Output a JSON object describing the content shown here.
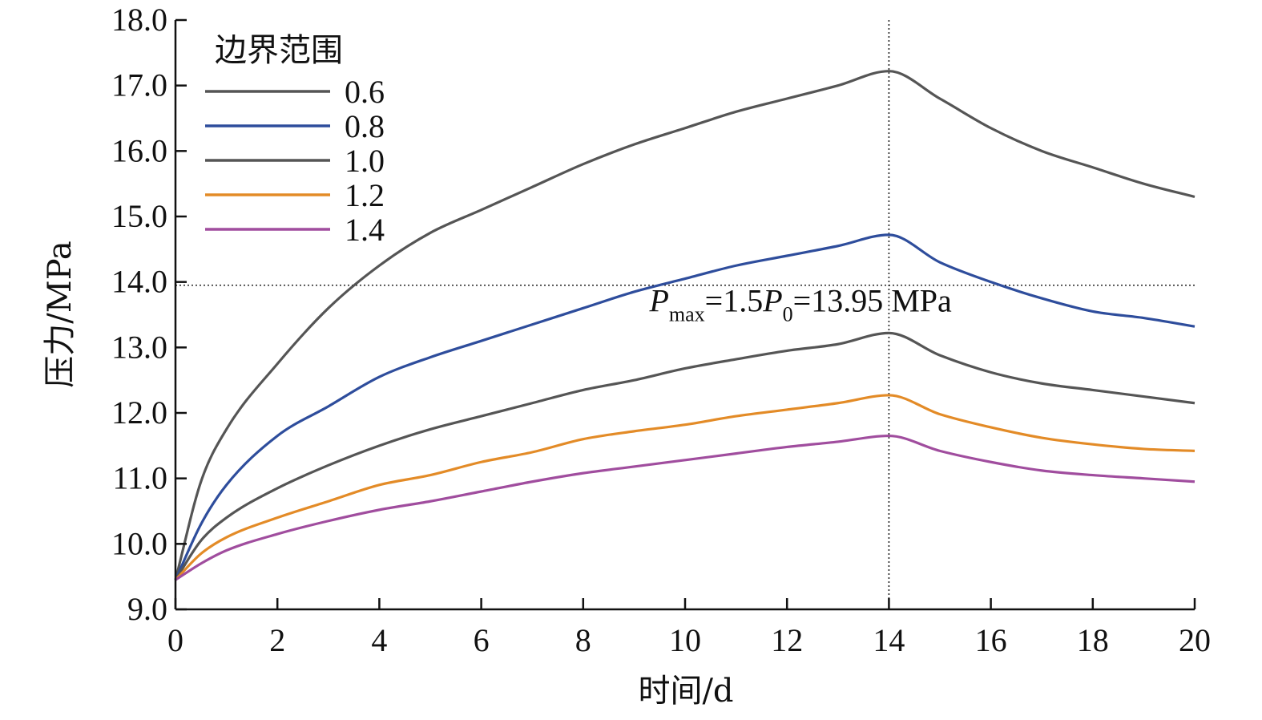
{
  "chart_data": {
    "type": "line",
    "xlabel": "时间/d",
    "ylabel": "压力/MPa",
    "xlim": [
      0,
      20
    ],
    "ylim": [
      9.0,
      18.0
    ],
    "xticks": [
      0,
      2,
      4,
      6,
      8,
      10,
      12,
      14,
      16,
      18,
      20
    ],
    "xtick_labels": [
      "0",
      "2",
      "4",
      "6",
      "8",
      "10",
      "12",
      "14",
      "16",
      "18",
      "20"
    ],
    "yticks": [
      9,
      10,
      11,
      12,
      13,
      14,
      15,
      16,
      17,
      18
    ],
    "ytick_labels": [
      "9.0",
      "10.0",
      "11.0",
      "12.0",
      "13.0",
      "14.0",
      "15.0",
      "16.0",
      "17.0",
      "18.0"
    ],
    "grid": false,
    "legend": {
      "title": "边界范围",
      "position": "top-left"
    },
    "reference_lines": [
      {
        "orientation": "horizontal",
        "y": 13.95,
        "style": "dotted"
      },
      {
        "orientation": "vertical",
        "x": 14,
        "style": "dotted"
      }
    ],
    "annotation": {
      "P": "P",
      "max_sub": "max",
      "mid": "=1.5",
      "P2": "P",
      "zero_sub": "0",
      "tail": "=13.95 MPa",
      "x": 9.3,
      "y": 13.55
    },
    "x": [
      0,
      0.5,
      1,
      2,
      3,
      4,
      5,
      6,
      7,
      8,
      9,
      10,
      11,
      12,
      13,
      14,
      15,
      16,
      17,
      18,
      19,
      20
    ],
    "series": [
      {
        "name": "0.6",
        "color": "#555555",
        "values": [
          9.45,
          10.95,
          11.75,
          12.75,
          13.6,
          14.25,
          14.75,
          15.1,
          15.45,
          15.8,
          16.1,
          16.35,
          16.6,
          16.8,
          17.0,
          17.22,
          16.8,
          16.35,
          16.0,
          15.75,
          15.5,
          15.3
        ]
      },
      {
        "name": "0.8",
        "color": "#2e4d9c",
        "values": [
          9.45,
          10.3,
          10.9,
          11.65,
          12.1,
          12.55,
          12.85,
          13.1,
          13.35,
          13.6,
          13.85,
          14.05,
          14.25,
          14.4,
          14.55,
          14.72,
          14.3,
          14.0,
          13.75,
          13.55,
          13.45,
          13.32
        ]
      },
      {
        "name": "1.0",
        "color": "#555555",
        "values": [
          9.45,
          10.05,
          10.4,
          10.85,
          11.2,
          11.5,
          11.75,
          11.95,
          12.15,
          12.35,
          12.5,
          12.68,
          12.82,
          12.95,
          13.05,
          13.22,
          12.88,
          12.62,
          12.45,
          12.35,
          12.25,
          12.15
        ]
      },
      {
        "name": "1.2",
        "color": "#e38b27",
        "values": [
          9.45,
          9.85,
          10.1,
          10.4,
          10.65,
          10.9,
          11.05,
          11.25,
          11.4,
          11.6,
          11.72,
          11.82,
          11.95,
          12.05,
          12.15,
          12.27,
          11.98,
          11.78,
          11.62,
          11.52,
          11.45,
          11.42
        ]
      },
      {
        "name": "1.4",
        "color": "#a04d9e",
        "values": [
          9.45,
          9.7,
          9.9,
          10.15,
          10.35,
          10.52,
          10.65,
          10.8,
          10.95,
          11.08,
          11.18,
          11.28,
          11.38,
          11.48,
          11.56,
          11.65,
          11.42,
          11.25,
          11.12,
          11.05,
          11.0,
          10.95
        ]
      }
    ]
  }
}
